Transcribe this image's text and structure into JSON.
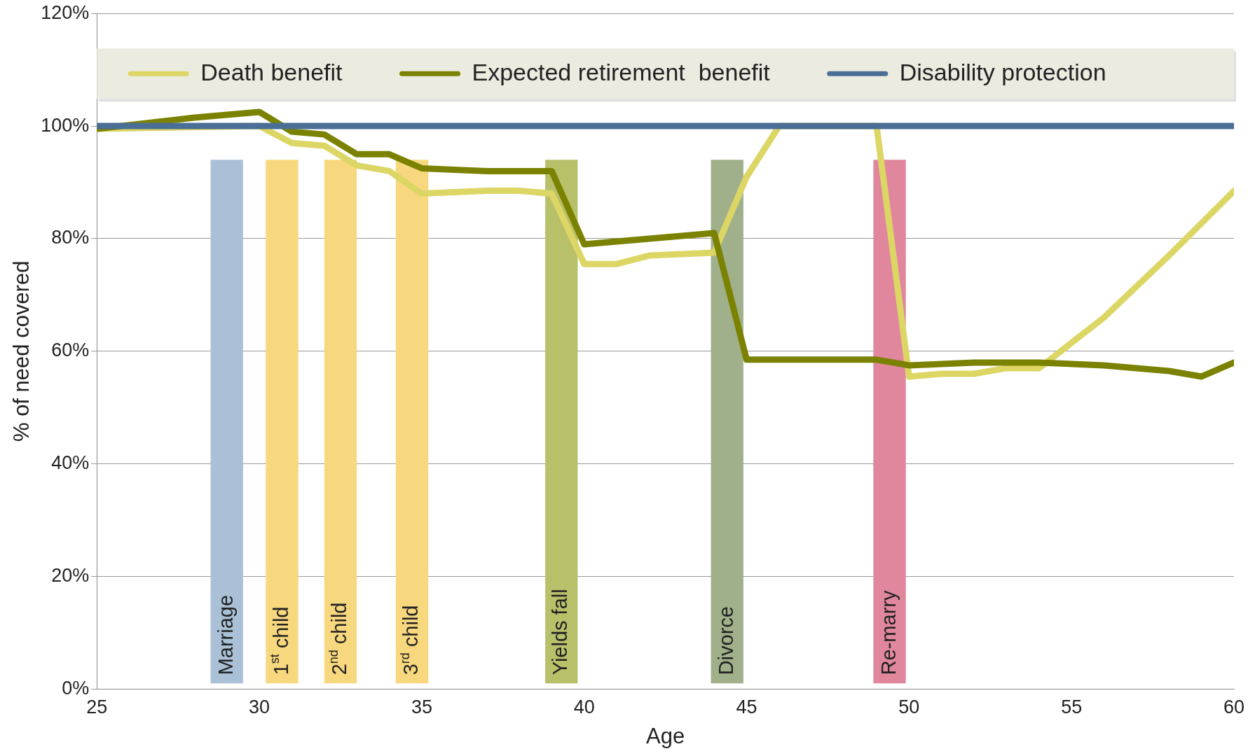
{
  "chart_data": {
    "type": "line",
    "xlabel": "Age",
    "ylabel": "% of need covered",
    "xlim": [
      25,
      60
    ],
    "xticks": [
      25,
      30,
      35,
      40,
      45,
      50,
      55,
      60
    ],
    "ylim": [
      0,
      120
    ],
    "yticks": [
      {
        "value": 0,
        "label": "0%"
      },
      {
        "value": 20,
        "label": "20%"
      },
      {
        "value": 40,
        "label": "40%"
      },
      {
        "value": 60,
        "label": "60%"
      },
      {
        "value": 80,
        "label": "80%"
      },
      {
        "value": 100,
        "label": "100%"
      },
      {
        "value": 120,
        "label": "120%"
      }
    ],
    "grid": "y",
    "legend": "top",
    "marker": "none",
    "line_style": "solid",
    "bands": [
      {
        "axis": "x",
        "from": 28.5,
        "to": 29.5,
        "label": "Marriage",
        "color": "#a9c0d6"
      },
      {
        "axis": "x",
        "from": 30.2,
        "to": 31.2,
        "label": "1$^{st}$ child",
        "color": "#f8d87e"
      },
      {
        "axis": "x",
        "from": 32,
        "to": 33,
        "label": "2$^{nd}$ child",
        "color": "#f8d87e"
      },
      {
        "axis": "x",
        "from": 34.2,
        "to": 35.2,
        "label": "3$^{rd}$ child",
        "color": "#f8d87e"
      },
      {
        "axis": "x",
        "from": 38.8,
        "to": 39.8,
        "label": "Yields fall",
        "color": "#b9c06a"
      },
      {
        "axis": "x",
        "from": 43.9,
        "to": 44.9,
        "label": "Divorce",
        "color": "#9fb08a"
      },
      {
        "axis": "x",
        "from": 48.9,
        "to": 49.9,
        "label": "Re-marry",
        "color": "#e0879e"
      }
    ],
    "series": [
      {
        "name": "Death benefit",
        "color": "#dcd665",
        "x": [
          25,
          30,
          31,
          32,
          33,
          34,
          35,
          37,
          38,
          39,
          40,
          41,
          42,
          44,
          45,
          46,
          49,
          50,
          51,
          52,
          53,
          54,
          56,
          58,
          60
        ],
        "values": [
          99.5,
          100,
          97,
          96.5,
          93,
          92,
          88,
          88.5,
          88.5,
          88,
          75.5,
          75.5,
          77,
          77.5,
          91,
          100,
          100,
          55.5,
          56,
          56,
          57,
          57,
          66,
          77,
          88.5
        ]
      },
      {
        "name": "Expected retirement  benefit",
        "color": "#7a8200",
        "x": [
          25,
          28,
          30,
          31,
          32,
          33,
          34,
          35,
          37,
          39,
          40,
          41,
          42,
          43,
          44,
          45,
          49,
          50,
          52,
          54,
          56,
          58,
          59,
          60
        ],
        "values": [
          99.5,
          101.5,
          102.5,
          99,
          98.5,
          95,
          95,
          92.5,
          92,
          92,
          79,
          79.5,
          80,
          80.5,
          81,
          58.5,
          58.5,
          57.5,
          58,
          58,
          57.5,
          56.5,
          55.5,
          58
        ]
      },
      {
        "name": "Disability protection",
        "color": "#4a6f96",
        "x": [
          25,
          60
        ],
        "values": [
          100,
          100
        ]
      }
    ]
  }
}
